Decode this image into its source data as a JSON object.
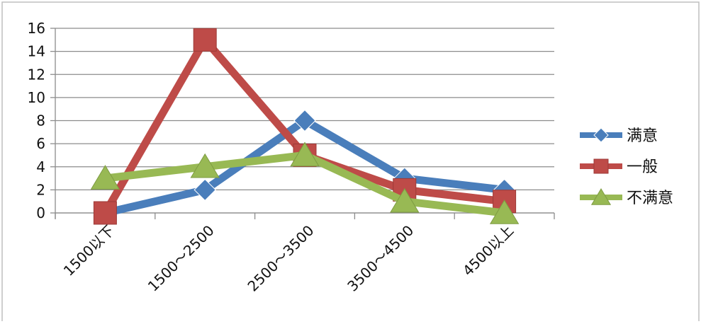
{
  "chart_data": {
    "type": "line",
    "categories": [
      "1500以下",
      "1500～2500",
      "2500～3500",
      "3500～4500",
      "4500以上"
    ],
    "series": [
      {
        "name": "满意",
        "values": [
          0,
          2,
          8,
          3,
          2
        ],
        "color": "#4A7EBB",
        "marker": "diamond"
      },
      {
        "name": "一般",
        "values": [
          0,
          15,
          5,
          2,
          1
        ],
        "color": "#BE4B48",
        "marker": "square"
      },
      {
        "name": "不满意",
        "values": [
          3,
          4,
          5,
          1,
          0
        ],
        "color": "#98B954",
        "marker": "triangle"
      }
    ],
    "yticks": [
      0,
      2,
      4,
      6,
      8,
      10,
      12,
      14,
      16
    ],
    "ylim": [
      0,
      16
    ],
    "grid": true,
    "legend": "right",
    "title": "",
    "xlabel": "",
    "ylabel": ""
  }
}
